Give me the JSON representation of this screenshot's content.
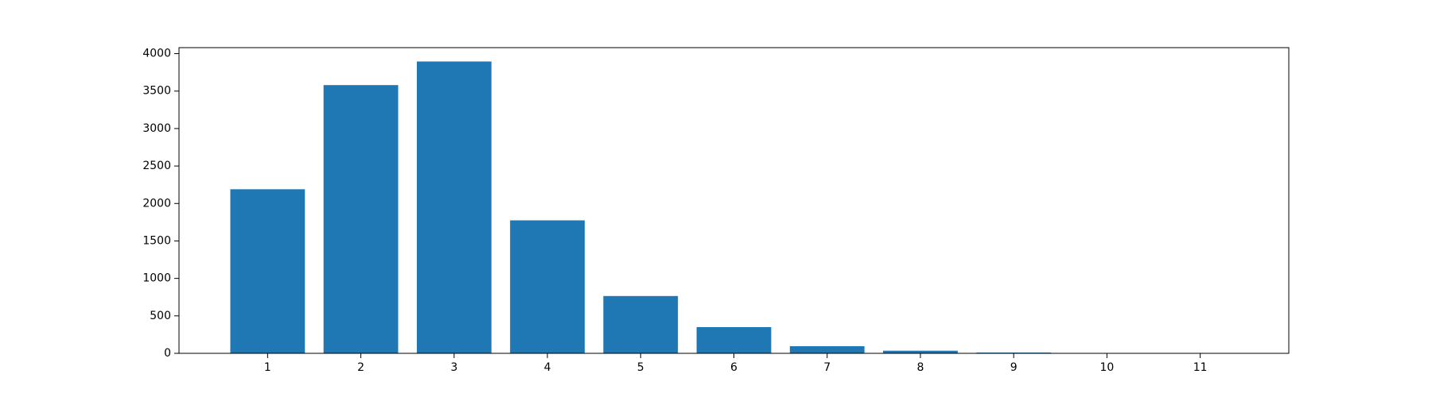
{
  "chart_data": {
    "type": "bar",
    "title": "",
    "xlabel": "",
    "ylabel": "",
    "categories": [
      "1",
      "2",
      "3",
      "4",
      "5",
      "6",
      "7",
      "8",
      "9",
      "10",
      "11"
    ],
    "values": [
      2190,
      3580,
      3895,
      1775,
      765,
      350,
      95,
      35,
      10,
      5,
      2
    ],
    "ylim": [
      0,
      4080
    ],
    "yticks": [
      0,
      500,
      1000,
      1500,
      2000,
      2500,
      3000,
      3500,
      4000
    ],
    "grid": false,
    "bar_color": "#1f77b4",
    "axis_color": "#000000"
  }
}
